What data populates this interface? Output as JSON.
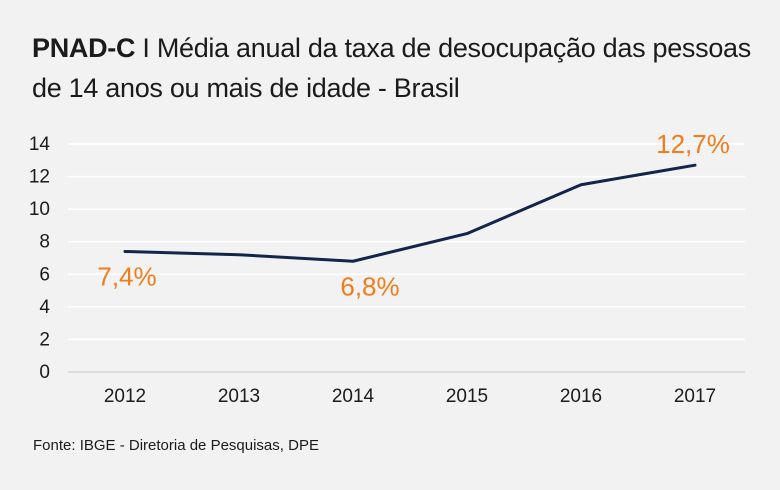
{
  "title": {
    "bold": "PNAD-C",
    "separator": " I ",
    "text": "Média anual da taxa de desocupação das pessoas de 14 anos ou mais de idade - Brasil"
  },
  "source": "Fonte: IBGE - Diretoria de Pesquisas, DPE",
  "colors": {
    "line": "#14254a",
    "label": "#f07d1a",
    "grid": "#ffffff",
    "background": "#f2f2f2"
  },
  "chart_data": {
    "type": "line",
    "x": [
      "2012",
      "2013",
      "2014",
      "2015",
      "2016",
      "2017"
    ],
    "series": [
      {
        "values": [
          7.4,
          7.2,
          6.8,
          8.5,
          11.5,
          12.7
        ]
      }
    ],
    "y_ticks": [
      "0",
      "2",
      "4",
      "6",
      "8",
      "10",
      "12",
      "14"
    ],
    "ylim": [
      0,
      14
    ],
    "grid": true,
    "annotations": [
      {
        "x": "2012",
        "text": "7,4%"
      },
      {
        "x": "2014",
        "text": "6,8%"
      },
      {
        "x": "2017",
        "text": "12,7%"
      }
    ]
  }
}
